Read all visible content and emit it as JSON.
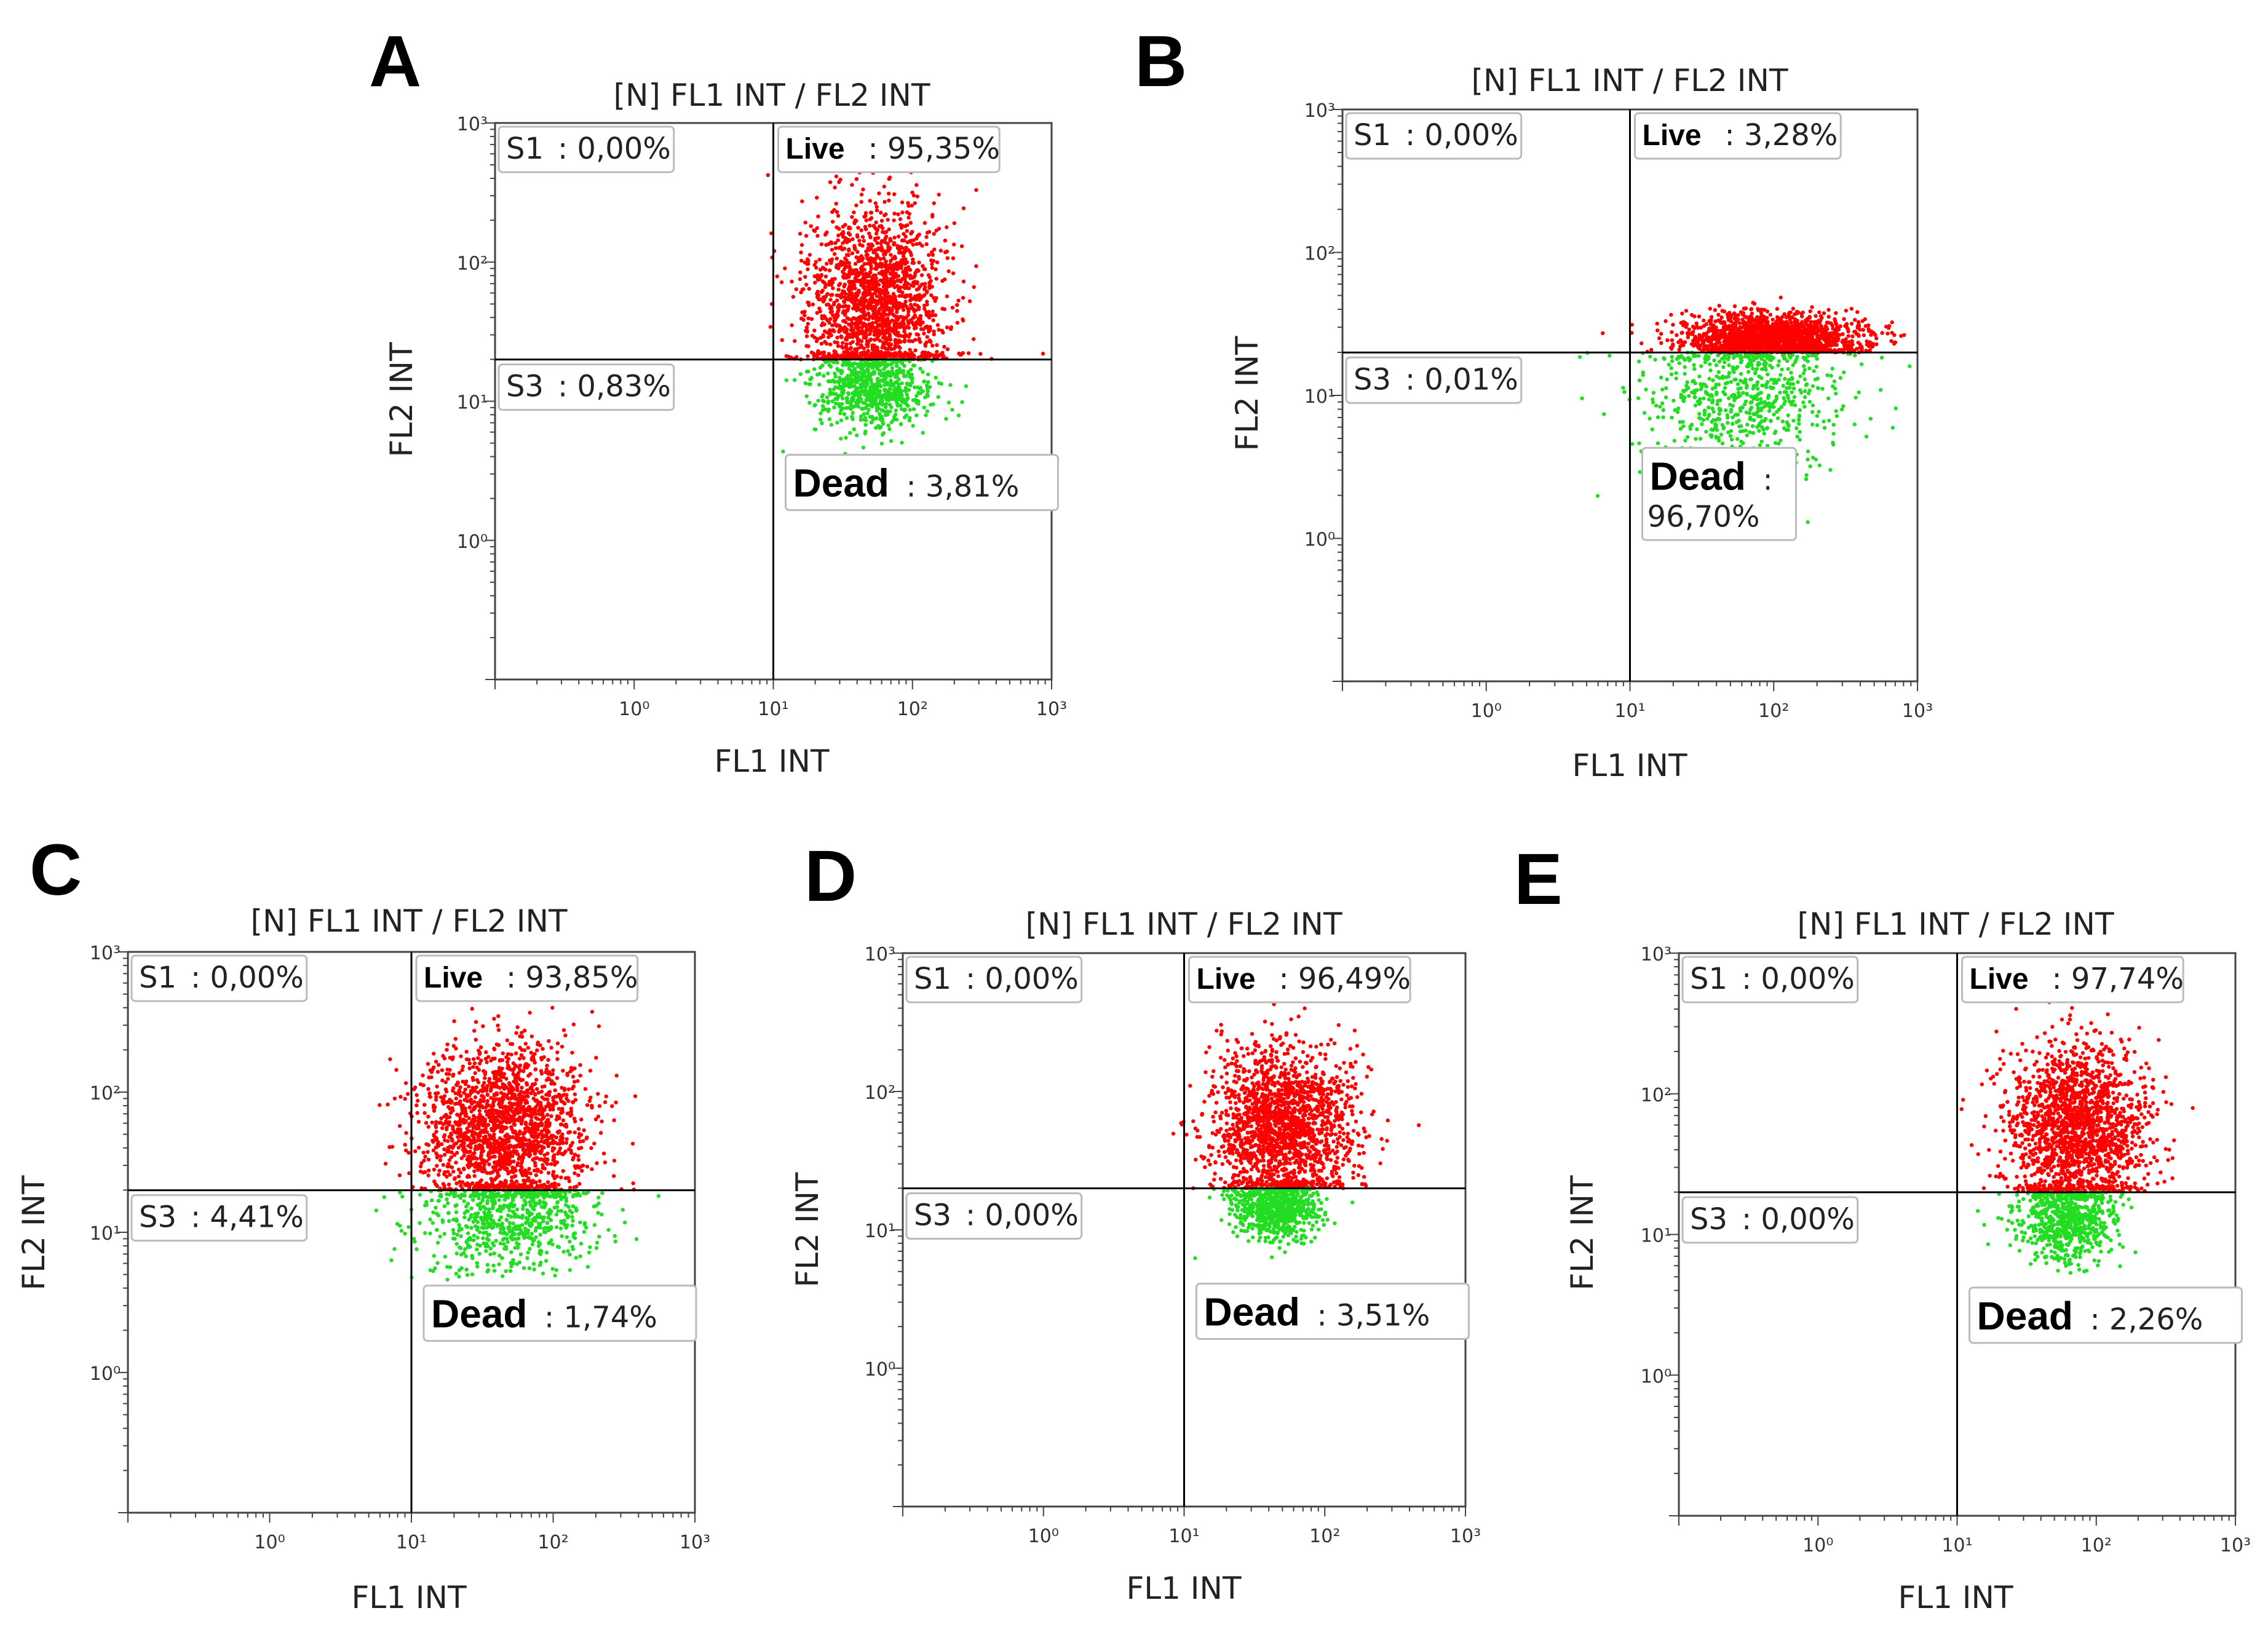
{
  "colors": {
    "live": "#ff0000",
    "dead": "#22dd22",
    "axis": "#000000",
    "label_box": "#bbbbbb",
    "background": "#ffffff"
  },
  "chart_data": [
    {
      "panel": "A",
      "type": "scatter",
      "title": "[N] FL1 INT / FL2 INT",
      "xlabel": "FL1 INT",
      "ylabel": "FL2 INT",
      "x_scale": "log",
      "y_scale": "log",
      "xlim_decades": [
        -1,
        3
      ],
      "ylim_decades": [
        -1,
        3
      ],
      "x_ticks": [
        "10⁰",
        "10¹",
        "10²",
        "10³"
      ],
      "y_ticks": [
        "10⁰",
        "10¹",
        "10²",
        "10³"
      ],
      "gate_x_decade": 1.0,
      "gate_y_decade": 1.3,
      "quadrants": {
        "S1": {
          "name": "S1",
          "value": ": 0,00%"
        },
        "Live": {
          "name": "Live",
          "value": ": 95,35%"
        },
        "S3": {
          "name": "S3",
          "value": ": 0,83%"
        },
        "Dead": {
          "name": "Dead",
          "value": ": 3,81%"
        }
      },
      "populations": [
        {
          "name": "Live",
          "center_log": [
            1.75,
            1.7
          ],
          "spread": [
            0.25,
            0.35
          ]
        },
        {
          "name": "Dead",
          "center_log": [
            1.7,
            1.1
          ],
          "spread": [
            0.2,
            0.15
          ]
        }
      ]
    },
    {
      "panel": "B",
      "type": "scatter",
      "title": "[N] FL1 INT / FL2 INT",
      "xlabel": "FL1 INT",
      "ylabel": "FL2 INT",
      "x_scale": "log",
      "y_scale": "log",
      "xlim_decades": [
        -1,
        3
      ],
      "ylim_decades": [
        -1,
        3
      ],
      "x_ticks": [
        "10⁰",
        "10¹",
        "10²",
        "10³"
      ],
      "y_ticks": [
        "10⁰",
        "10¹",
        "10²",
        "10³"
      ],
      "gate_x_decade": 1.0,
      "gate_y_decade": 1.3,
      "quadrants": {
        "S1": {
          "name": "S1",
          "value": ": 0,00%"
        },
        "Live": {
          "name": "Live",
          "value": ": 3,28%"
        },
        "S3": {
          "name": "S3",
          "value": ": 0,01%"
        },
        "Dead": {
          "name": "Dead",
          "value": ":",
          "value2": "96,70%"
        }
      },
      "populations": [
        {
          "name": "Dead",
          "center_log": [
            1.8,
            1.0
          ],
          "spread": [
            0.35,
            0.25
          ]
        },
        {
          "name": "Live",
          "center_log": [
            2.0,
            1.4
          ],
          "spread": [
            0.3,
            0.08
          ]
        }
      ]
    },
    {
      "panel": "C",
      "type": "scatter",
      "title": "[N] FL1 INT / FL2 INT",
      "xlabel": "FL1 INT",
      "ylabel": "FL2 INT",
      "x_scale": "log",
      "y_scale": "log",
      "xlim_decades": [
        -1,
        3
      ],
      "ylim_decades": [
        -1,
        3
      ],
      "x_ticks": [
        "10⁰",
        "10¹",
        "10²",
        "10³"
      ],
      "y_ticks": [
        "10⁰",
        "10¹",
        "10²",
        "10³"
      ],
      "gate_x_decade": 1.0,
      "gate_y_decade": 1.3,
      "quadrants": {
        "S1": {
          "name": "S1",
          "value": ": 0,00%"
        },
        "Live": {
          "name": "Live",
          "value": ": 93,85%"
        },
        "S3": {
          "name": "S3",
          "value": ": 4,41%"
        },
        "Dead": {
          "name": "Dead",
          "value": ": 1,74%"
        }
      },
      "populations": [
        {
          "name": "Live",
          "center_log": [
            1.65,
            1.75
          ],
          "spread": [
            0.28,
            0.3
          ]
        },
        {
          "name": "Dead",
          "center_log": [
            1.7,
            1.1
          ],
          "spread": [
            0.3,
            0.2
          ]
        }
      ]
    },
    {
      "panel": "D",
      "type": "scatter",
      "title": "[N] FL1 INT / FL2 INT",
      "xlabel": "FL1 INT",
      "ylabel": "FL2 INT",
      "x_scale": "log",
      "y_scale": "log",
      "xlim_decades": [
        -1,
        3
      ],
      "ylim_decades": [
        -1,
        3
      ],
      "x_ticks": [
        "10⁰",
        "10¹",
        "10²",
        "10³"
      ],
      "y_ticks": [
        "10⁰",
        "10¹",
        "10²",
        "10³"
      ],
      "gate_x_decade": 1.0,
      "gate_y_decade": 1.3,
      "quadrants": {
        "S1": {
          "name": "S1",
          "value": ": 0,00%"
        },
        "Live": {
          "name": "Live",
          "value": ": 96,49%"
        },
        "S3": {
          "name": "S3",
          "value": ": 0,00%"
        },
        "Dead": {
          "name": "Dead",
          "value": ": 3,51%"
        }
      },
      "populations": [
        {
          "name": "Live",
          "center_log": [
            1.7,
            1.75
          ],
          "spread": [
            0.25,
            0.3
          ]
        },
        {
          "name": "Dead",
          "center_log": [
            1.65,
            1.15
          ],
          "spread": [
            0.15,
            0.12
          ]
        }
      ]
    },
    {
      "panel": "E",
      "type": "scatter",
      "title": "[N] FL1 INT / FL2 INT",
      "xlabel": "FL1 INT",
      "ylabel": "FL2 INT",
      "x_scale": "log",
      "y_scale": "log",
      "xlim_decades": [
        -1,
        3
      ],
      "ylim_decades": [
        -1,
        3
      ],
      "x_ticks": [
        "10⁰",
        "10¹",
        "10²",
        "10³"
      ],
      "y_ticks": [
        "10⁰",
        "10¹",
        "10²",
        "10³"
      ],
      "gate_x_decade": 1.0,
      "gate_y_decade": 1.3,
      "quadrants": {
        "S1": {
          "name": "S1",
          "value": ": 0,00%"
        },
        "Live": {
          "name": "Live",
          "value": ": 97,74%"
        },
        "S3": {
          "name": "S3",
          "value": ": 0,00%"
        },
        "Dead": {
          "name": "Dead",
          "value": ": 2,26%"
        }
      },
      "populations": [
        {
          "name": "Live",
          "center_log": [
            1.85,
            1.75
          ],
          "spread": [
            0.25,
            0.3
          ]
        },
        {
          "name": "Dead",
          "center_log": [
            1.8,
            1.1
          ],
          "spread": [
            0.18,
            0.15
          ]
        }
      ]
    }
  ]
}
